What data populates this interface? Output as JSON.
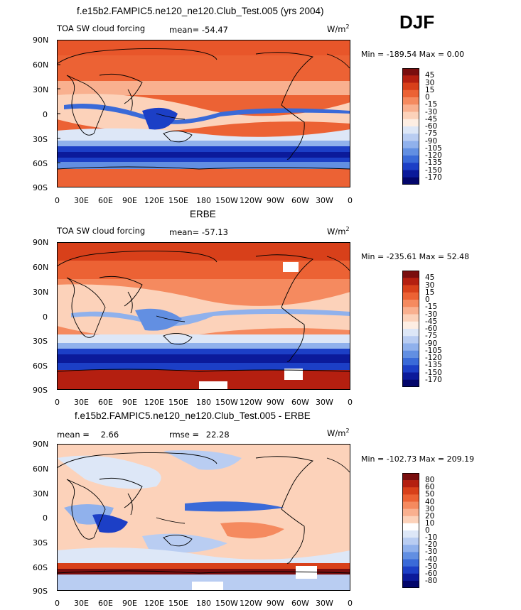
{
  "season": "DJF",
  "unit_label": "W/m",
  "unit_sup": "2",
  "lat_ticks": [
    "90N",
    "60N",
    "30N",
    "0",
    "30S",
    "60S",
    "90S"
  ],
  "lon_ticks": [
    "0",
    "30E",
    "60E",
    "90E",
    "120E",
    "150E",
    "180",
    "150W",
    "120W",
    "90W",
    "60W",
    "30W",
    "0"
  ],
  "panels": [
    {
      "title": "f.e15b2.FAMPIC5.ne120_ne120.Club_Test.005 (yrs 2004)",
      "left_label": "TOA SW cloud forcing",
      "stat1_label": "mean=",
      "stat1_value": "-54.47",
      "stat2_label": "",
      "stat2_value": "",
      "range": "Min = -189.54  Max =   0.00",
      "colorbar_levels": [
        "45",
        "30",
        "15",
        "0",
        "-15",
        "-30",
        "-45",
        "-60",
        "-75",
        "-90",
        "-105",
        "-120",
        "-135",
        "-150",
        "-170"
      ]
    },
    {
      "title": "ERBE",
      "left_label": "TOA SW cloud forcing",
      "stat1_label": "mean=",
      "stat1_value": "-57.13",
      "stat2_label": "",
      "stat2_value": "",
      "range": "Min = -235.61  Max =  52.48",
      "colorbar_levels": [
        "45",
        "30",
        "15",
        "0",
        "-15",
        "-30",
        "-45",
        "-60",
        "-75",
        "-90",
        "-105",
        "-120",
        "-135",
        "-150",
        "-170"
      ]
    },
    {
      "title": "f.e15b2.FAMPIC5.ne120_ne120.Club_Test.005 - ERBE",
      "left_label": "mean =",
      "stat1_label": "",
      "stat1_value": "2.66",
      "stat2_label": "rmse =",
      "stat2_value": "22.28",
      "range": "Min = -102.73  Max = 209.19",
      "colorbar_levels": [
        "80",
        "60",
        "50",
        "40",
        "30",
        "20",
        "10",
        "0",
        "-10",
        "-20",
        "-30",
        "-40",
        "-50",
        "-60",
        "-80"
      ]
    }
  ],
  "colors": {
    "abs_scale": [
      "#7a0e0e",
      "#b41f10",
      "#d8401a",
      "#ec6234",
      "#f58a5f",
      "#f9b08f",
      "#fcd2ba",
      "#fdeee3",
      "#dde7f7",
      "#b9cdf2",
      "#90b1ec",
      "#628fe2",
      "#3a6ad8",
      "#1c3fc6",
      "#0b1a9a",
      "#03066b"
    ],
    "diff_scale": [
      "#7a0e0e",
      "#b41f10",
      "#d8401a",
      "#ec6234",
      "#f58a5f",
      "#f9b08f",
      "#fcd2ba",
      "#ffffff",
      "#dde7f7",
      "#b9cdf2",
      "#90b1ec",
      "#628fe2",
      "#3a6ad8",
      "#1c3fc6",
      "#0b1a9a",
      "#03066b"
    ]
  }
}
